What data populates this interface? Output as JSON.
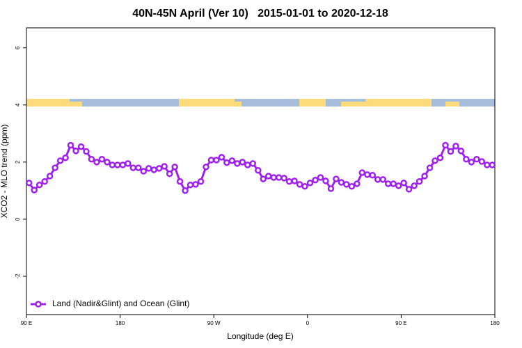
{
  "chart_data": {
    "type": "line",
    "title": "40N-45N April (Ver 10)   2015-01-01 to 2020-12-18",
    "xlabel": "Longitude (deg E)",
    "ylabel": "XCO2 - MLO trend (ppm)",
    "xlim": [
      90,
      540
    ],
    "ylim": [
      -3.34,
      6.7
    ],
    "xticks": [
      {
        "value": 90,
        "label": "90 E"
      },
      180,
      {
        "value": 270,
        "label": "90 W"
      },
      {
        "value": 360,
        "label": "0"
      },
      {
        "value": 450,
        "label": "90 E"
      },
      {
        "value": 540,
        "label": "180"
      }
    ],
    "yticks": [
      -2,
      0,
      2,
      4,
      6
    ],
    "legend": "bottomleft",
    "x": [
      92.5,
      97.5,
      102.5,
      107.5,
      112.5,
      117.5,
      122.5,
      127.5,
      132.5,
      137.5,
      142.5,
      147.5,
      152.5,
      157.5,
      162.5,
      167.5,
      172.5,
      177.5,
      182.5,
      187.5,
      192.5,
      197.5,
      202.5,
      207.5,
      212.5,
      217.5,
      222.5,
      227.5,
      232.5,
      237.5,
      242.5,
      247.5,
      252.5,
      257.5,
      262.5,
      267.5,
      272.5,
      277.5,
      282.5,
      287.5,
      292.5,
      297.5,
      302.5,
      307.5,
      312.5,
      317.5,
      322.5,
      327.5,
      332.5,
      337.5,
      342.5,
      347.5,
      352.5,
      357.5,
      362.5,
      367.5,
      372.5,
      377.5,
      382.5,
      387.5,
      392.5,
      397.5,
      402.5,
      407.5,
      412.5,
      417.5,
      422.5,
      427.5,
      432.5,
      437.5,
      442.5,
      447.5,
      452.5,
      457.5,
      462.5,
      467.5,
      472.5,
      477.5,
      482.5,
      487.5,
      492.5,
      497.5,
      502.5,
      507.5,
      512.5,
      517.5,
      522.5,
      527.5,
      532.5,
      537.5
    ],
    "series": [
      {
        "name": "Land (Nadir&Glint) and Ocean (Glint)",
        "color": "#a020f0",
        "values": [
          1.27,
          1.02,
          1.2,
          1.32,
          1.51,
          1.8,
          2.05,
          2.15,
          2.59,
          2.39,
          2.54,
          2.37,
          2.1,
          2.0,
          2.1,
          2.0,
          1.9,
          1.9,
          1.9,
          1.95,
          1.8,
          1.8,
          1.68,
          1.78,
          1.73,
          1.78,
          1.85,
          1.59,
          1.83,
          1.32,
          1.0,
          1.2,
          1.22,
          1.32,
          1.83,
          2.07,
          2.07,
          2.17,
          1.98,
          2.05,
          1.95,
          2.0,
          1.9,
          1.95,
          1.71,
          1.41,
          1.51,
          1.46,
          1.46,
          1.44,
          1.32,
          1.34,
          1.22,
          1.15,
          1.27,
          1.37,
          1.46,
          1.34,
          1.07,
          1.41,
          1.29,
          1.22,
          1.15,
          1.24,
          1.63,
          1.56,
          1.54,
          1.39,
          1.39,
          1.24,
          1.24,
          1.17,
          1.27,
          1.05,
          1.17,
          1.32,
          1.51,
          1.8,
          2.05,
          2.15,
          2.59,
          2.37,
          2.56,
          2.39,
          2.1,
          2.0,
          2.1,
          2.02,
          1.9,
          1.9
        ]
      }
    ]
  }
}
